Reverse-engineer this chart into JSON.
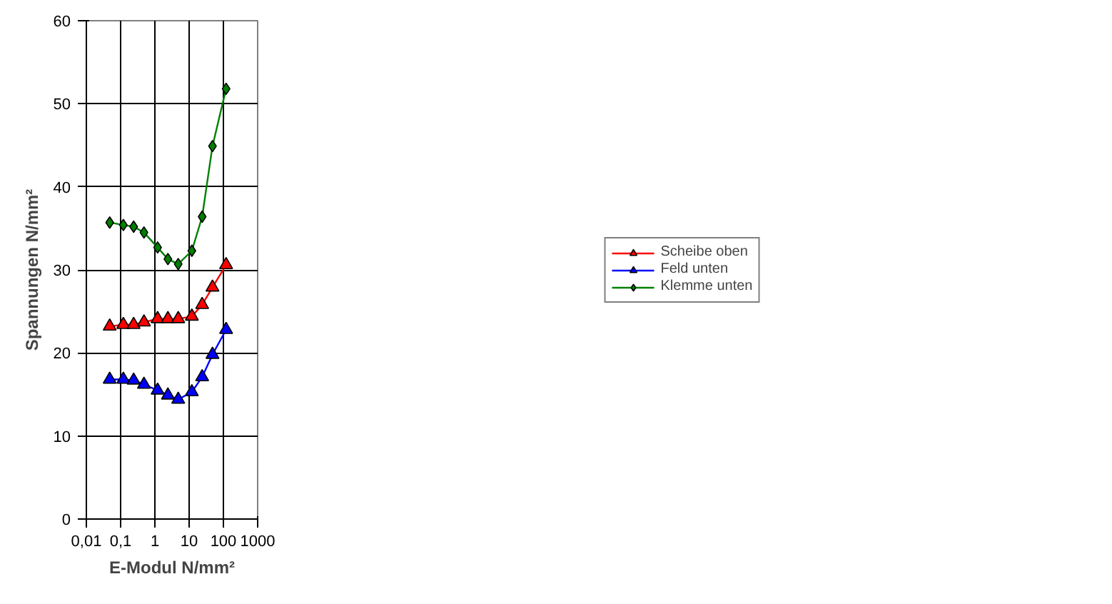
{
  "chart_data": {
    "type": "line",
    "xlabel": "E-Modul N/mm²",
    "ylabel": "Spannungen N/mm²",
    "log": "x",
    "x": [
      0.048,
      0.12,
      0.24,
      0.48,
      1.2,
      2.4,
      4.8,
      12,
      24,
      48,
      120
    ],
    "xlim": [
      0.01,
      1000
    ],
    "xticks": [
      {
        "value": 0.01,
        "label": "0,01"
      },
      {
        "value": 0.1,
        "label": "0,1"
      },
      1,
      10,
      100,
      1000
    ],
    "ylim": [
      0,
      60
    ],
    "yticks": [
      0,
      10,
      20,
      30,
      40,
      50,
      60
    ],
    "grid": true,
    "legend": "right",
    "line_style": "solid",
    "series": [
      {
        "name": "Scheibe oben",
        "color": "#ff0000",
        "marker": "triangle",
        "values": [
          23.2,
          23.4,
          23.4,
          23.7,
          24.1,
          24.1,
          24.1,
          24.4,
          25.8,
          27.9,
          30.6
        ]
      },
      {
        "name": "Feld unten",
        "color": "#0000ff",
        "marker": "triangle",
        "values": [
          16.8,
          16.8,
          16.7,
          16.2,
          15.5,
          14.9,
          14.4,
          15.3,
          17.1,
          19.8,
          22.8
        ]
      },
      {
        "name": "Klemme unten",
        "color": "#008000",
        "marker": "diamond",
        "values": [
          35.7,
          35.4,
          35.2,
          34.5,
          32.7,
          31.3,
          30.7,
          32.3,
          36.4,
          44.9,
          51.8
        ]
      }
    ]
  }
}
